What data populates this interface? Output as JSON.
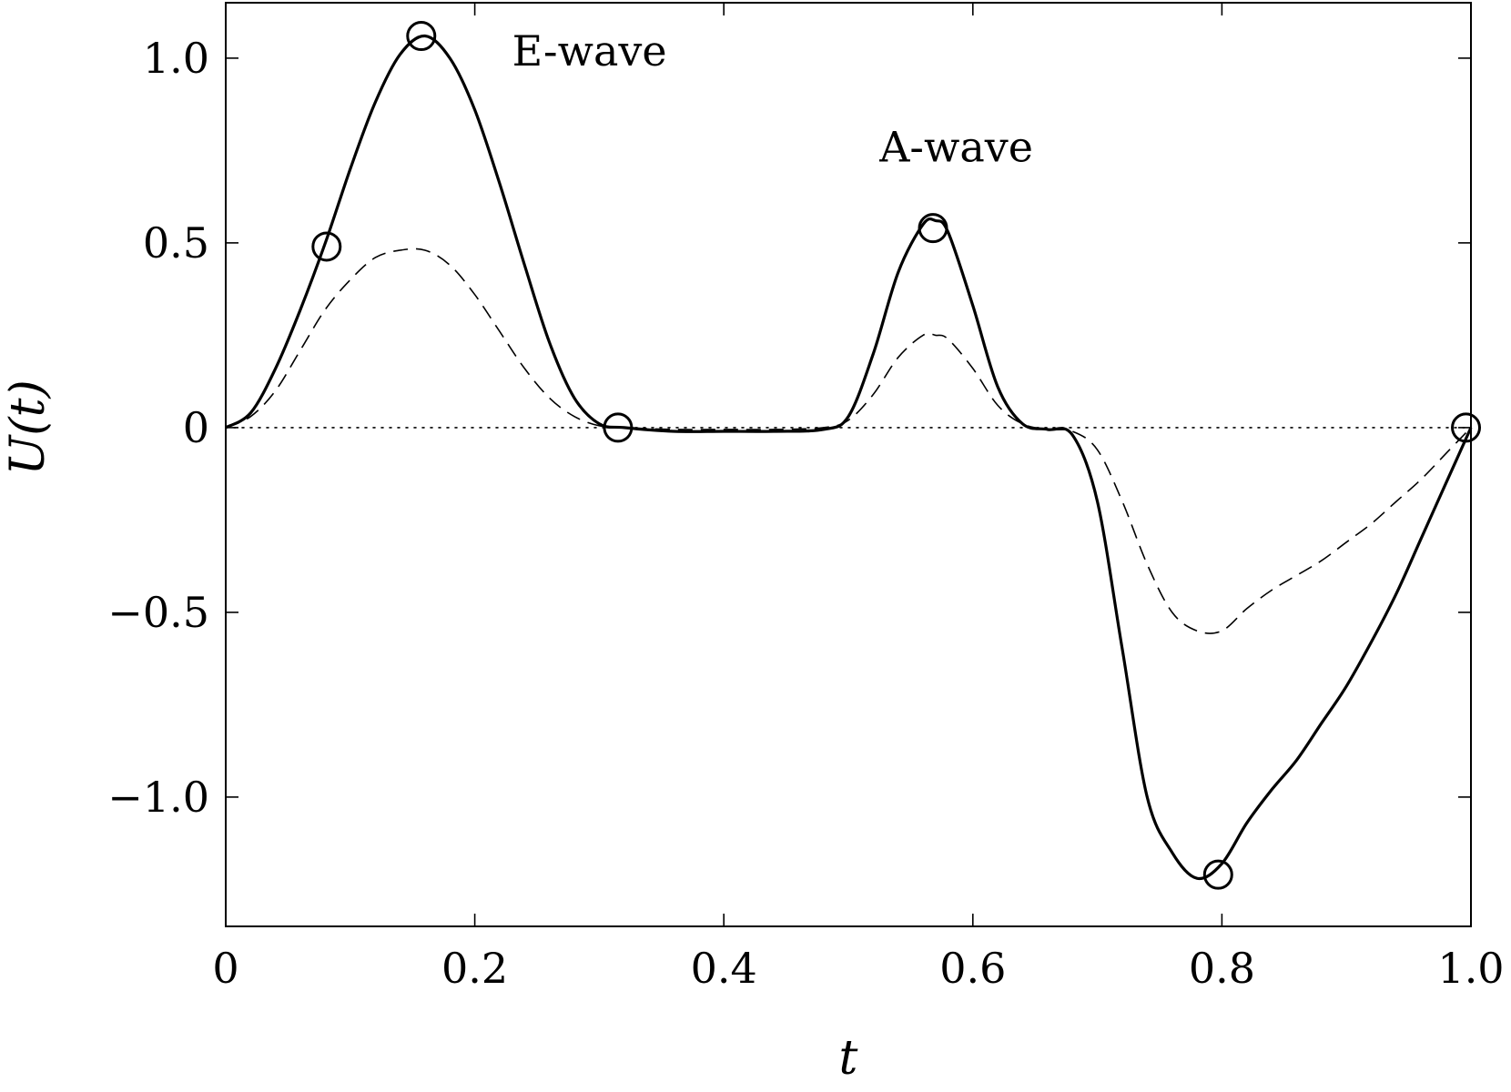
{
  "chart_data": {
    "type": "line",
    "title": "",
    "xlabel": "t",
    "ylabel": "U(t)",
    "xlim": [
      0,
      1.0
    ],
    "ylim": [
      -1.35,
      1.15
    ],
    "grid": false,
    "xticks": [
      {
        "value": 0,
        "label": "0"
      },
      {
        "value": 0.2,
        "label": "0.2"
      },
      {
        "value": 0.4,
        "label": "0.4"
      },
      {
        "value": 0.6,
        "label": "0.6"
      },
      {
        "value": 0.8,
        "label": "0.8"
      },
      {
        "value": 1.0,
        "label": "1.0"
      }
    ],
    "yticks": [
      {
        "value": 1.0,
        "label": "1.0"
      },
      {
        "value": 0.5,
        "label": "0.5"
      },
      {
        "value": 0,
        "label": "0"
      },
      {
        "value": -0.5,
        "label": "−0.5"
      },
      {
        "value": -1.0,
        "label": "−1.0"
      }
    ],
    "series": [
      {
        "style": "solid",
        "color": "#000000",
        "x": [
          0.0,
          0.02,
          0.04,
          0.06,
          0.08,
          0.1,
          0.12,
          0.14,
          0.16,
          0.18,
          0.2,
          0.22,
          0.24,
          0.26,
          0.28,
          0.3,
          0.32,
          0.36,
          0.4,
          0.44,
          0.48,
          0.5,
          0.52,
          0.54,
          0.56,
          0.57,
          0.58,
          0.6,
          0.62,
          0.64,
          0.66,
          0.68,
          0.7,
          0.72,
          0.74,
          0.76,
          0.78,
          0.8,
          0.82,
          0.84,
          0.86,
          0.88,
          0.9,
          0.92,
          0.94,
          0.96,
          0.98,
          1.0
        ],
        "y": [
          0.0,
          0.04,
          0.16,
          0.32,
          0.5,
          0.7,
          0.88,
          1.01,
          1.06,
          1.0,
          0.86,
          0.66,
          0.44,
          0.23,
          0.08,
          0.01,
          0.0,
          -0.01,
          -0.01,
          -0.01,
          -0.005,
          0.03,
          0.2,
          0.42,
          0.55,
          0.56,
          0.53,
          0.33,
          0.11,
          0.01,
          -0.005,
          -0.02,
          -0.2,
          -0.6,
          -1.0,
          -1.15,
          -1.22,
          -1.18,
          -1.07,
          -0.98,
          -0.9,
          -0.8,
          -0.7,
          -0.58,
          -0.45,
          -0.3,
          -0.15,
          0.0
        ]
      },
      {
        "style": "dashed",
        "color": "#000000",
        "x": [
          0.0,
          0.02,
          0.04,
          0.06,
          0.08,
          0.1,
          0.12,
          0.14,
          0.16,
          0.18,
          0.2,
          0.22,
          0.24,
          0.26,
          0.28,
          0.3,
          0.32,
          0.36,
          0.4,
          0.44,
          0.48,
          0.5,
          0.52,
          0.54,
          0.56,
          0.57,
          0.58,
          0.6,
          0.62,
          0.64,
          0.66,
          0.68,
          0.7,
          0.72,
          0.74,
          0.76,
          0.78,
          0.8,
          0.82,
          0.84,
          0.86,
          0.88,
          0.9,
          0.92,
          0.94,
          0.96,
          0.98,
          1.0
        ],
        "y": [
          0.0,
          0.03,
          0.1,
          0.21,
          0.32,
          0.4,
          0.46,
          0.48,
          0.48,
          0.44,
          0.36,
          0.26,
          0.16,
          0.08,
          0.03,
          0.005,
          0.0,
          -0.005,
          -0.005,
          -0.005,
          0.0,
          0.02,
          0.09,
          0.19,
          0.25,
          0.25,
          0.24,
          0.16,
          0.06,
          0.01,
          -0.005,
          -0.01,
          -0.06,
          -0.2,
          -0.37,
          -0.5,
          -0.55,
          -0.55,
          -0.49,
          -0.44,
          -0.4,
          -0.36,
          -0.31,
          -0.26,
          -0.2,
          -0.14,
          -0.07,
          0.0
        ]
      }
    ],
    "markers": {
      "style": "open-circle",
      "points": [
        {
          "x": 0.081,
          "y": 0.49
        },
        {
          "x": 0.157,
          "y": 1.06
        },
        {
          "x": 0.315,
          "y": 0.0
        },
        {
          "x": 0.568,
          "y": 0.54
        },
        {
          "x": 0.797,
          "y": -1.21
        },
        {
          "x": 0.996,
          "y": 0.0
        }
      ]
    },
    "reference_line": {
      "y": 0,
      "style": "dotted"
    },
    "annotations": [
      {
        "text": "E-wave",
        "x": 0.23,
        "y": 0.98
      },
      {
        "text": "A-wave",
        "x": 0.525,
        "y": 0.72
      }
    ]
  }
}
